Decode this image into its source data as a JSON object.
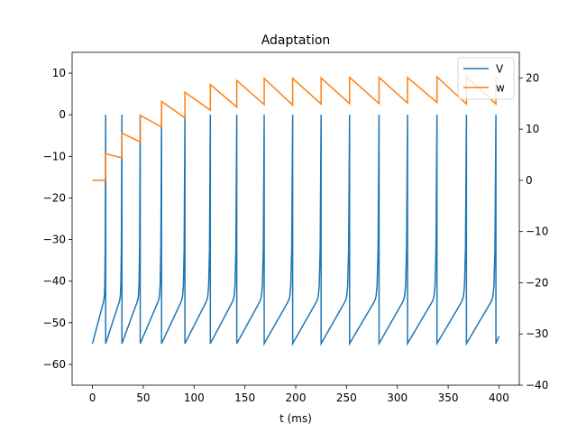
{
  "chart_data": {
    "type": "line",
    "title": "Adaptation",
    "xlabel": "t (ms)",
    "ylabel_left": "",
    "ylabel_right": "",
    "xlim": [
      -20,
      420
    ],
    "ylim_left": [
      -65,
      15
    ],
    "ylim_right": [
      -40,
      25
    ],
    "x_ticks": [
      0,
      50,
      100,
      150,
      200,
      250,
      300,
      350,
      400
    ],
    "y_left_ticks": [
      -60,
      -50,
      -40,
      -30,
      -20,
      -10,
      0,
      10
    ],
    "y_right_ticks": [
      -40,
      -30,
      -20,
      -10,
      0,
      10,
      20
    ],
    "tick_minus": "−",
    "legend": {
      "position": "top-right",
      "entries": [
        "V",
        "w"
      ]
    },
    "grid": false,
    "v_reset": -55,
    "v_peak": 0,
    "v_end": -53.2,
    "series": [
      {
        "name": "V",
        "axis": "left",
        "color": "#1f77b4",
        "spike_times": [
          13,
          29,
          47,
          68,
          91,
          116,
          142,
          169,
          197,
          225,
          253,
          282,
          310,
          339,
          368,
          397
        ],
        "x_start": 0,
        "x_end": 400,
        "value_start": -55
      },
      {
        "name": "w",
        "axis": "right",
        "color": "#ff7f0e",
        "x_start": 0,
        "x_end": 400,
        "value_start": 0,
        "points": [
          [
            0,
            0
          ],
          [
            13,
            0
          ],
          [
            13,
            5.2
          ],
          [
            29,
            4.4
          ],
          [
            29,
            9.2
          ],
          [
            47,
            7.5
          ],
          [
            47,
            12.7
          ],
          [
            68,
            10.4
          ],
          [
            68,
            15.4
          ],
          [
            91,
            12.2
          ],
          [
            91,
            17.2
          ],
          [
            116,
            13.7
          ],
          [
            116,
            18.7
          ],
          [
            142,
            14.3
          ],
          [
            142,
            19.5
          ],
          [
            169,
            14.8
          ],
          [
            169,
            19.9
          ],
          [
            197,
            14.7
          ],
          [
            197,
            19.9
          ],
          [
            225,
            14.9
          ],
          [
            225,
            20.0
          ],
          [
            253,
            15.0
          ],
          [
            253,
            20.1
          ],
          [
            282,
            15.0
          ],
          [
            282,
            20.1
          ],
          [
            310,
            15.1
          ],
          [
            310,
            20.1
          ],
          [
            339,
            15.2
          ],
          [
            339,
            20.2
          ],
          [
            368,
            14.9
          ],
          [
            368,
            20.2
          ],
          [
            397,
            14.9
          ],
          [
            397,
            20.1
          ],
          [
            400,
            19.9
          ]
        ]
      }
    ]
  }
}
